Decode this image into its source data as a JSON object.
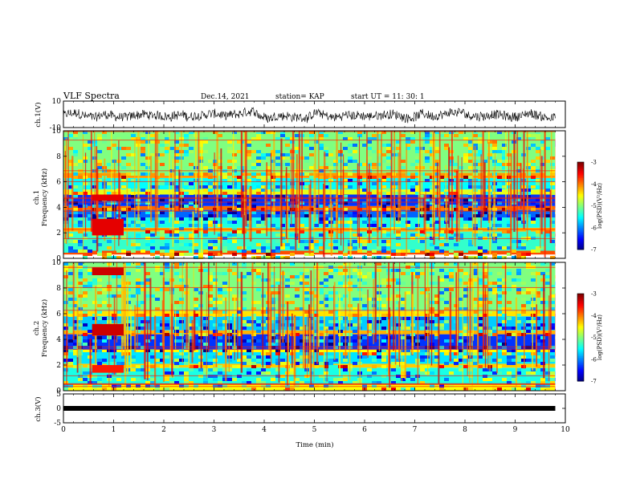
{
  "header": {
    "title": "VLF Spectra",
    "date": "Dec.14, 2021",
    "station": "station= KAP",
    "start": "start  UT =   11: 30: 1"
  },
  "chart_data": [
    {
      "type": "line",
      "panel": "ch1-waveform",
      "ylabel": "ch.1(V)",
      "ylim": [
        -10,
        10
      ],
      "yticks": [
        "10",
        "-10"
      ],
      "description_values": "dense noisy waveform oscillating roughly between -7 and 5 V over 0–9.8 min",
      "x_range": [
        0,
        9.8
      ]
    },
    {
      "type": "heatmap",
      "panel": "ch1-spectrogram",
      "ylabel": "ch.1",
      "ylabel2": "Frequency (kHz)",
      "ylim": [
        0,
        10
      ],
      "yticks": [
        "0",
        "2",
        "4",
        "6",
        "8",
        "10"
      ],
      "colorbar": {
        "label": "log(PSD)(V²/Hz)",
        "range": [
          -7,
          -3
        ],
        "ticks": [
          "-3",
          "-4",
          "-5",
          "-6",
          "-7"
        ]
      },
      "bands_khz": [
        {
          "from": 0.3,
          "to": 0.6,
          "level": -3.8
        },
        {
          "from": 0.6,
          "to": 2.1,
          "level": -5.3
        },
        {
          "from": 2.1,
          "to": 2.4,
          "level": -4.2
        },
        {
          "from": 2.4,
          "to": 3.2,
          "level": -5.4
        },
        {
          "from": 3.2,
          "to": 3.8,
          "level": -6.1
        },
        {
          "from": 3.8,
          "to": 4.1,
          "level": -3.9
        },
        {
          "from": 4.1,
          "to": 5.0,
          "level": -6.3
        },
        {
          "from": 5.0,
          "to": 5.4,
          "level": -4.6
        },
        {
          "from": 5.4,
          "to": 6.3,
          "level": -5.5
        },
        {
          "from": 6.3,
          "to": 6.7,
          "level": -4.1
        },
        {
          "from": 6.7,
          "to": 10.0,
          "level": -5.0
        }
      ],
      "bursts": [
        {
          "t_from": 0.57,
          "t_to": 1.2,
          "f_from": 1.8,
          "f_to": 3.1,
          "level": -3.4
        },
        {
          "t_from": 0.57,
          "t_to": 1.2,
          "f_from": 4.5,
          "f_to": 5.0,
          "level": -3.4
        }
      ]
    },
    {
      "type": "heatmap",
      "panel": "ch2-spectrogram",
      "ylabel": "ch.2",
      "ylabel2": "Frequency (kHz)",
      "ylim": [
        0,
        10
      ],
      "yticks": [
        "0",
        "2",
        "4",
        "6",
        "8",
        "10"
      ],
      "colorbar": {
        "label": "log(PSD)(V²/Hz)",
        "range": [
          -7,
          -3
        ],
        "ticks": [
          "-3",
          "-4",
          "-5",
          "-6",
          "-7"
        ]
      },
      "bands_khz": [
        {
          "from": 0.0,
          "to": 0.5,
          "level": -4.5
        },
        {
          "from": 0.5,
          "to": 1.8,
          "level": -5.4
        },
        {
          "from": 1.8,
          "to": 2.1,
          "level": -4.3
        },
        {
          "from": 2.1,
          "to": 3.0,
          "level": -5.6
        },
        {
          "from": 3.0,
          "to": 3.2,
          "level": -4.5
        },
        {
          "from": 3.2,
          "to": 4.4,
          "level": -6.3
        },
        {
          "from": 4.4,
          "to": 4.7,
          "level": -4.2
        },
        {
          "from": 4.7,
          "to": 5.8,
          "level": -5.7
        },
        {
          "from": 5.8,
          "to": 6.2,
          "level": -4.4
        },
        {
          "from": 6.2,
          "to": 10.0,
          "level": -5.0
        }
      ],
      "bursts": [
        {
          "t_from": 0.57,
          "t_to": 1.2,
          "f_from": 4.3,
          "f_to": 5.2,
          "level": -3.3
        },
        {
          "t_from": 0.57,
          "t_to": 1.2,
          "f_from": 9.0,
          "f_to": 9.6,
          "level": -3.3
        },
        {
          "t_from": 0.57,
          "t_to": 1.2,
          "f_from": 1.4,
          "f_to": 2.0,
          "level": -3.6
        }
      ]
    },
    {
      "type": "line",
      "panel": "ch3-waveform",
      "ylabel": "ch.3(V)",
      "ylim": [
        -5,
        5
      ],
      "yticks": [
        "5",
        "0",
        "-5"
      ],
      "x": [
        0,
        9.8
      ],
      "y": [
        0,
        0
      ],
      "xlabel": "Time (min)",
      "xlim": [
        0,
        10
      ],
      "xticks": [
        "0",
        "1",
        "2",
        "3",
        "4",
        "5",
        "6",
        "7",
        "8",
        "9",
        "10"
      ]
    }
  ]
}
